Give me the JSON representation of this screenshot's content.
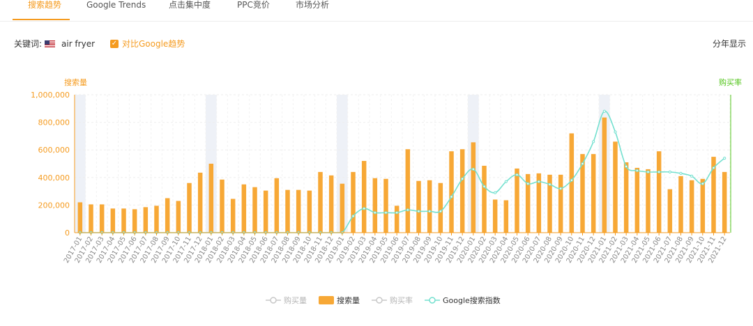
{
  "tabs": [
    {
      "label": "搜索趋势",
      "active": true
    },
    {
      "label": "Google Trends",
      "active": false
    },
    {
      "label": "点击集中度",
      "active": false
    },
    {
      "label": "PPC竞价",
      "active": false
    },
    {
      "label": "市场分析",
      "active": false
    }
  ],
  "keyword": {
    "label": "关键词:",
    "flag_icon": "us-flag-icon",
    "value": "air fryer",
    "compare_checked": true,
    "compare_label": "对比Google趋势"
  },
  "year_toggle_label": "分年显示",
  "colors": {
    "accent": "#f59b1f",
    "bar": "#f7a836",
    "trend": "#73e0cf",
    "buy_rate_axis": "#52c41a",
    "inactive": "#c8c8c8"
  },
  "chart_data": {
    "type": "bar",
    "left_axis_title": "搜索量",
    "right_axis_title": "购买率",
    "ylim": [
      0,
      1000000
    ],
    "yticks": [
      "0",
      "200,000",
      "400,000",
      "600,000",
      "800,000",
      "1,000,000"
    ],
    "categories": [
      "2017-01",
      "2017-02",
      "2017-03",
      "2017-04",
      "2017-05",
      "2017-06",
      "2017-07",
      "2017-08",
      "2017-09",
      "2017-10",
      "2017-11",
      "2017-12",
      "2018-01",
      "2018-02",
      "2018-03",
      "2018-04",
      "2018-05",
      "2018-06",
      "2018-07",
      "2018-08",
      "2018-09",
      "2018-10",
      "2018-11",
      "2018-12",
      "2019-01",
      "2019-02",
      "2019-03",
      "2019-04",
      "2019-05",
      "2019-06",
      "2019-07",
      "2019-08",
      "2019-09",
      "2019-10",
      "2019-11",
      "2019-12",
      "2020-01",
      "2020-02",
      "2020-03",
      "2020-04",
      "2020-05",
      "2020-06",
      "2020-07",
      "2020-08",
      "2020-09",
      "2020-10",
      "2020-11",
      "2020-12",
      "2021-01",
      "2021-02",
      "2021-03",
      "2021-04",
      "2021-05",
      "2021-06",
      "2021-07",
      "2021-08",
      "2021-09",
      "2021-10",
      "2021-11",
      "2021-12"
    ],
    "highlighted_months": [
      "2017-01",
      "2018-01",
      "2019-01",
      "2020-01",
      "2021-01"
    ],
    "series": [
      {
        "name": "搜索量",
        "type": "bar",
        "values": [
          220000,
          205000,
          205000,
          175000,
          175000,
          170000,
          185000,
          195000,
          250000,
          230000,
          360000,
          435000,
          500000,
          385000,
          245000,
          350000,
          330000,
          305000,
          395000,
          310000,
          310000,
          305000,
          440000,
          415000,
          355000,
          440000,
          520000,
          395000,
          390000,
          195000,
          605000,
          375000,
          380000,
          360000,
          590000,
          605000,
          655000,
          485000,
          240000,
          235000,
          465000,
          425000,
          430000,
          420000,
          420000,
          720000,
          570000,
          570000,
          835000,
          660000,
          510000,
          470000,
          460000,
          590000,
          315000,
          410000,
          380000,
          390000,
          550000,
          440000
        ]
      },
      {
        "name": "Google搜索指数",
        "type": "line",
        "values": [
          0,
          0,
          0,
          0,
          0,
          0,
          0,
          0,
          0,
          0,
          0,
          0,
          0,
          0,
          0,
          0,
          0,
          0,
          0,
          0,
          0,
          0,
          0,
          0,
          0,
          120000,
          175000,
          145000,
          145000,
          145000,
          165000,
          155000,
          155000,
          155000,
          260000,
          390000,
          460000,
          335000,
          290000,
          370000,
          420000,
          355000,
          370000,
          350000,
          320000,
          380000,
          500000,
          660000,
          880000,
          730000,
          480000,
          450000,
          440000,
          440000,
          440000,
          430000,
          410000,
          355000,
          470000,
          540000
        ]
      }
    ],
    "legend": [
      {
        "label": "购买量",
        "kind": "line-dot",
        "active": false
      },
      {
        "label": "搜索量",
        "kind": "bar",
        "active": true
      },
      {
        "label": "购买率",
        "kind": "line-dot",
        "active": false
      },
      {
        "label": "Google搜索指数",
        "kind": "line-dot",
        "active": true
      }
    ],
    "legend_position": "bottom-center"
  }
}
